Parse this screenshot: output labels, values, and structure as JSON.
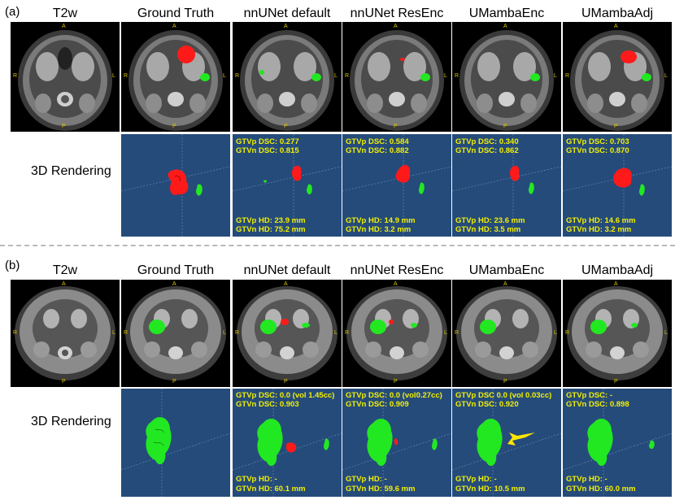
{
  "panels": [
    {
      "label": "(a)",
      "columns": [
        "T2w",
        "Ground Truth",
        "nnUNet default",
        "nnUNet ResEnc",
        "UMambaEnc",
        "UMambaAdj"
      ],
      "orientation": {
        "top": "A",
        "left": "R",
        "right": "L",
        "bottom": "P"
      },
      "render_row_title": "3D Rendering",
      "metrics": [
        {
          "dsc_p": "GTVp DSC: 0.277",
          "dsc_n": "GTVn DSC: 0.815",
          "hd_p": "GTVp HD: 23.9 mm",
          "hd_n": "GTVn HD: 75.2 mm"
        },
        {
          "dsc_p": "GTVp DSC: 0.584",
          "dsc_n": "GTVn DSC: 0.882",
          "hd_p": "GTVp HD: 14.9 mm",
          "hd_n": "GTVn HD: 3.2 mm"
        },
        {
          "dsc_p": "GTVp DSC: 0.340",
          "dsc_n": "GTVn DSC: 0.862",
          "hd_p": "GTVp HD: 23.6 mm",
          "hd_n": "GTVn HD: 3.5 mm"
        },
        {
          "dsc_p": "GTVp DSC: 0.703",
          "dsc_n": "GTVn DSC: 0.870",
          "hd_p": "GTVp HD: 14.6 mm",
          "hd_n": "GTVn HD: 3.2 mm"
        }
      ]
    },
    {
      "label": "(b)",
      "columns": [
        "T2w",
        "Ground Truth",
        "nnUNet default",
        "nnUNet ResEnc",
        "UMambaEnc",
        "UMambaAdj"
      ],
      "orientation": {
        "top": "A",
        "left": "R",
        "right": "L",
        "bottom": "P"
      },
      "render_row_title": "3D Rendering",
      "metrics": [
        {
          "dsc_p": "GTVp DSC: 0.0 (vol 1.45cc)",
          "dsc_n": "GTVn DSC: 0.903",
          "hd_p": "GTVp HD: -",
          "hd_n": "GTVn HD: 60.1 mm"
        },
        {
          "dsc_p": "GTVp DSC: 0.0 (vol0.27cc)",
          "dsc_n": "GTVn DSC: 0.909",
          "hd_p": "GTVp HD: -",
          "hd_n": "GTVn HD: 59.6 mm"
        },
        {
          "dsc_p": "GTVp DSC 0.0 (vol 0.03cc)",
          "dsc_n": "GTVn DSC: 0.920",
          "hd_p": "GTVp HD: -",
          "hd_n": "GTVn HD: 10.5 mm"
        },
        {
          "dsc_p": "GTVp DSC: -",
          "dsc_n": "GTVn DSC: 0.898",
          "hd_p": "GTVp HD: -",
          "hd_n": "GTVn HD: 60.0 mm"
        }
      ]
    }
  ],
  "colors": {
    "primary_tumor": "#ff1a1a",
    "lymph_node": "#22e822",
    "render_background": "#254b7b",
    "metric_text": "#f2f000",
    "arrow": "#ffe600"
  }
}
